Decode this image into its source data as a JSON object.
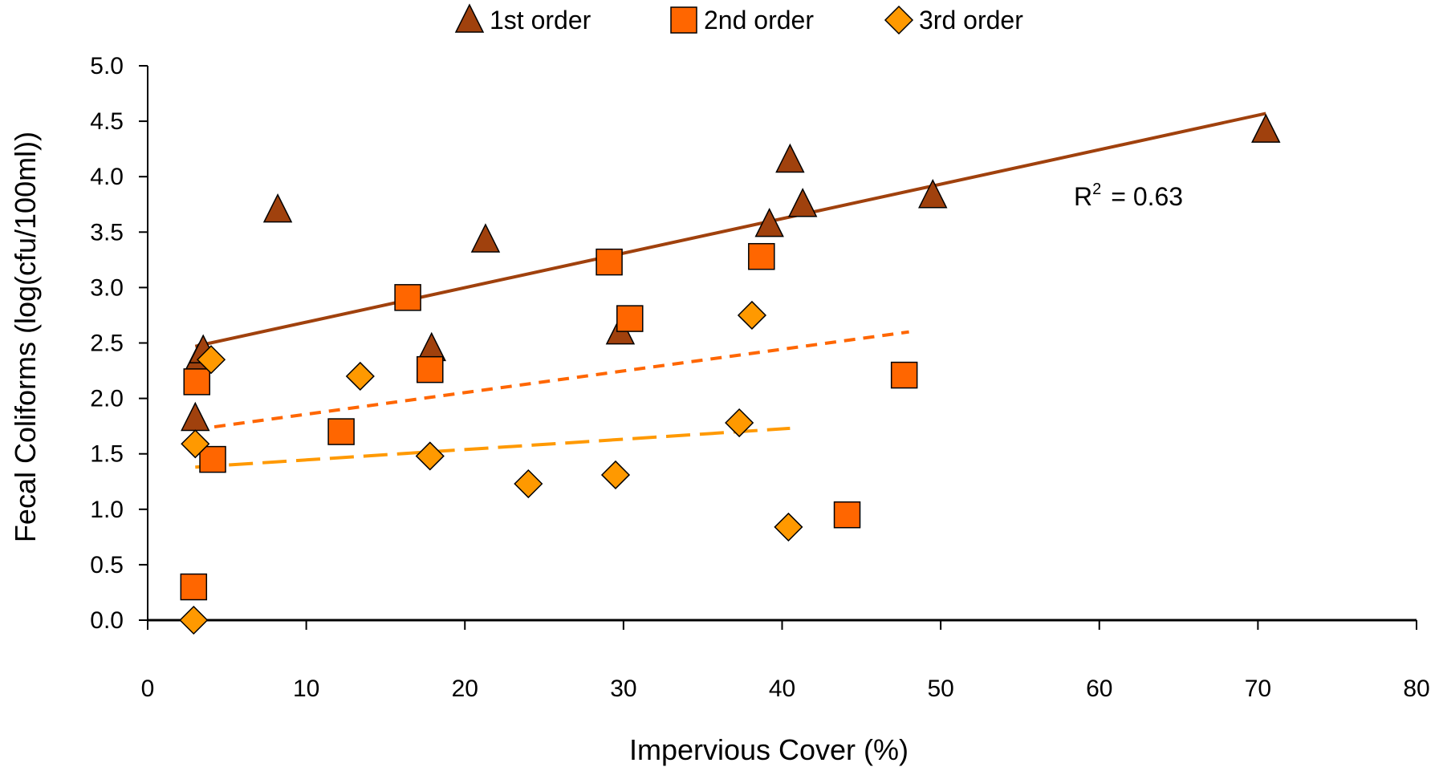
{
  "chart_data": {
    "type": "scatter",
    "xlabel": "Impervious Cover (%)",
    "ylabel": "Fecal Coliforms (log(cfu/100ml))",
    "xlim": [
      0,
      80
    ],
    "ylim": [
      0.0,
      5.0
    ],
    "x_ticks": [
      0,
      10,
      20,
      30,
      40,
      50,
      60,
      70,
      80
    ],
    "x_tick_labels": [
      "0",
      "10",
      "20",
      "30",
      "40",
      "50",
      "60",
      "70",
      "80"
    ],
    "y_ticks": [
      0.0,
      0.5,
      1.0,
      1.5,
      2.0,
      2.5,
      3.0,
      3.5,
      4.0,
      4.5,
      5.0
    ],
    "y_tick_labels": [
      "0.0",
      "0.5",
      "1.0",
      "1.5",
      "2.0",
      "2.5",
      "3.0",
      "3.5",
      "4.0",
      "4.5",
      "5.0"
    ],
    "grid": false,
    "legend_position": "top",
    "annotation": {
      "r2_label": "R",
      "r2_sup": "2",
      "r2_value": "= 0.63"
    },
    "series": [
      {
        "name": "1st order",
        "marker": "triangle",
        "color": "#A0410D",
        "points": [
          [
            3.0,
            1.82
          ],
          [
            3.2,
            2.35
          ],
          [
            3.5,
            2.43
          ],
          [
            8.2,
            3.7
          ],
          [
            17.9,
            2.45
          ],
          [
            21.3,
            3.43
          ],
          [
            29.8,
            2.6
          ],
          [
            39.2,
            3.57
          ],
          [
            40.5,
            4.15
          ],
          [
            41.3,
            3.75
          ],
          [
            49.5,
            3.83
          ],
          [
            70.5,
            4.42
          ]
        ],
        "trendline": {
          "x": [
            3,
            70.5
          ],
          "y": [
            2.47,
            4.57
          ],
          "style": "solid"
        }
      },
      {
        "name": "2nd order",
        "marker": "square",
        "color": "#FF6600",
        "points": [
          [
            2.9,
            0.3
          ],
          [
            3.1,
            2.15
          ],
          [
            4.1,
            1.45
          ],
          [
            12.2,
            1.7
          ],
          [
            16.4,
            2.91
          ],
          [
            17.8,
            2.26
          ],
          [
            29.1,
            3.23
          ],
          [
            30.4,
            2.72
          ],
          [
            38.7,
            3.28
          ],
          [
            44.1,
            0.95
          ],
          [
            47.7,
            2.21
          ]
        ],
        "trendline": {
          "x": [
            3,
            48
          ],
          "y": [
            1.72,
            2.6
          ],
          "style": "dotted"
        }
      },
      {
        "name": "3rd order",
        "marker": "diamond",
        "color": "#FF9900",
        "points": [
          [
            2.9,
            0.0
          ],
          [
            3.0,
            1.59
          ],
          [
            4.0,
            2.35
          ],
          [
            13.4,
            2.2
          ],
          [
            17.8,
            1.48
          ],
          [
            24.0,
            1.23
          ],
          [
            29.5,
            1.31
          ],
          [
            37.3,
            1.78
          ],
          [
            38.1,
            2.75
          ],
          [
            40.4,
            0.84
          ]
        ],
        "trendline": {
          "x": [
            3,
            40.5
          ],
          "y": [
            1.38,
            1.73
          ],
          "style": "dashed"
        }
      }
    ]
  }
}
